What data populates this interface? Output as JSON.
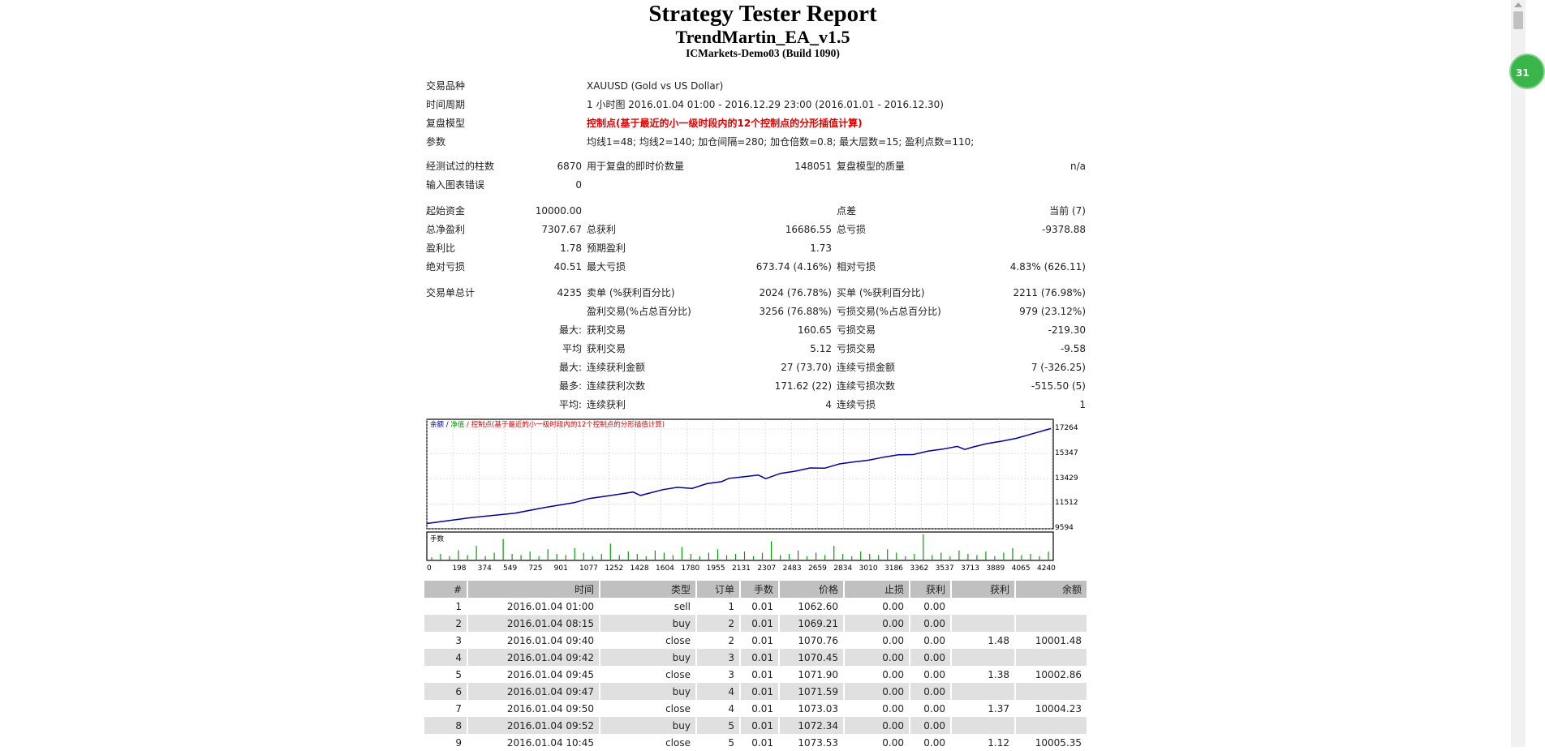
{
  "report": {
    "title": "Strategy Tester Report",
    "ea_name": "TrendMartin_EA_v1.5",
    "server": "ICMarkets-Demo03 (Build 1090)"
  },
  "summary": {
    "symbol_label": "交易品种",
    "symbol_value": "XAUUSD (Gold vs US Dollar)",
    "period_label": "时间周期",
    "period_value": "1 小时图 2016.01.04 01:00 - 2016.12.29 23:00 (2016.01.01 - 2016.12.30)",
    "model_label": "复盘模型",
    "model_value": "控制点(基于最近的小一级时段内的12个控制点的分形插值计算)",
    "params_label": "参数",
    "params_value": "均线1=48; 均线2=140; 加仓间隔=280; 加仓倍数=0.8; 最大层数=15; 盈利点数=110;",
    "bars_label": "经测试过的柱数",
    "bars_value": "6870",
    "ticks_label": "用于复盘的即时价数量",
    "ticks_value": "148051",
    "quality_label": "复盘模型的质量",
    "quality_value": "n/a",
    "errors_label": "输入图表错误",
    "errors_value": "0",
    "deposit_label": "起始资金",
    "deposit_value": "10000.00",
    "spread_label": "点差",
    "spread_value": "当前 (7)",
    "net_profit_label": "总净盈利",
    "net_profit_value": "7307.67",
    "gross_profit_label": "总获利",
    "gross_profit_value": "16686.55",
    "gross_loss_label": "总亏损",
    "gross_loss_value": "-9378.88",
    "profit_factor_label": "盈利比",
    "profit_factor_value": "1.78",
    "expected_payoff_label": "预期盈利",
    "expected_payoff_value": "1.73",
    "abs_drawdown_label": "绝对亏损",
    "abs_drawdown_value": "40.51",
    "max_drawdown_label": "最大亏损",
    "max_drawdown_value": "673.74 (4.16%)",
    "rel_drawdown_label": "相对亏损",
    "rel_drawdown_value": "4.83% (626.11)",
    "total_trades_label": "交易单总计",
    "total_trades_value": "4235",
    "short_label": "卖单 (%获利百分比)",
    "short_value": "2024 (76.78%)",
    "long_label": "买单 (%获利百分比)",
    "long_value": "2211 (76.98%)",
    "profit_trades_label": "盈利交易(%占总百分比)",
    "profit_trades_value": "3256 (76.88%)",
    "loss_trades_label": "亏损交易(%占总百分比)",
    "loss_trades_value": "979 (23.12%)",
    "largest_prefix": "最大:",
    "largest_profit_label": "获利交易",
    "largest_profit_value": "160.65",
    "largest_loss_label": "亏损交易",
    "largest_loss_value": "-219.30",
    "average_prefix": "平均",
    "average_profit_label": "获利交易",
    "average_profit_value": "5.12",
    "average_loss_label": "亏损交易",
    "average_loss_value": "-9.58",
    "max_consec_prefix": "最大:",
    "max_consec_wins_label": "连续获利金额",
    "max_consec_wins_value": "27 (73.70)",
    "max_consec_losses_label": "连续亏损金额",
    "max_consec_losses_value": "7 (-326.25)",
    "maximal_prefix": "最多:",
    "maximal_consec_profit_label": "连续获利次数",
    "maximal_consec_profit_value": "171.62 (22)",
    "maximal_consec_loss_label": "连续亏损次数",
    "maximal_consec_loss_value": "-515.50 (5)",
    "avg_consec_prefix": "平均:",
    "avg_consec_wins_label": "连续获利",
    "avg_consec_wins_value": "4",
    "avg_consec_losses_label": "连续亏损",
    "avg_consec_losses_value": "1"
  },
  "chart_data": {
    "type": "line",
    "legend": {
      "balance": "余额",
      "sep1": " / ",
      "equity": "净值",
      "sep2": " / ",
      "model": "控制点(基于最近的小一级时段内的12个控制点的分形插值计算)"
    },
    "ylim": [
      9594,
      17264
    ],
    "y_ticks": [
      "17264",
      "15347",
      "13429",
      "11512",
      "9594"
    ],
    "x_ticks": [
      "0",
      "198",
      "374",
      "549",
      "725",
      "901",
      "1077",
      "1252",
      "1428",
      "1604",
      "1780",
      "1955",
      "2131",
      "2307",
      "2483",
      "2659",
      "2834",
      "3010",
      "3186",
      "3362",
      "3537",
      "3713",
      "3889",
      "4065",
      "4240"
    ],
    "volume_label": "手数",
    "colors": {
      "balance": "#0000a0",
      "equity": "#00a000",
      "model": "#e00000",
      "volume": "#00a000"
    },
    "series": [
      {
        "name": "余额",
        "x": [
          0,
          300,
          600,
          800,
          1000,
          1100,
          1250,
          1400,
          1450,
          1600,
          1700,
          1800,
          1900,
          2000,
          2050,
          2150,
          2250,
          2300,
          2400,
          2500,
          2600,
          2700,
          2800,
          2900,
          3000,
          3100,
          3200,
          3300,
          3400,
          3500,
          3600,
          3650,
          3700,
          3800,
          3900,
          4000,
          4100,
          4235
        ],
        "values": [
          10001,
          10450,
          10800,
          11230,
          11600,
          11920,
          12160,
          12420,
          12160,
          12600,
          12780,
          12700,
          13060,
          13220,
          13470,
          13590,
          13720,
          13450,
          13850,
          14020,
          14270,
          14250,
          14580,
          14740,
          14870,
          15100,
          15290,
          15300,
          15560,
          15720,
          15930,
          15690,
          15860,
          16140,
          16330,
          16550,
          16870,
          17300
        ]
      }
    ],
    "volume_values": [
      0.02,
      0.05,
      0.03,
      0.08,
      0.04,
      0.12,
      0.03,
      0.06,
      0.18,
      0.05,
      0.04,
      0.07,
      0.03,
      0.09,
      0.05,
      0.04,
      0.1,
      0.06,
      0.03,
      0.05,
      0.14,
      0.04,
      0.07,
      0.05,
      0.03,
      0.08,
      0.06,
      0.04,
      0.11,
      0.05,
      0.03,
      0.06,
      0.09,
      0.04,
      0.05,
      0.07,
      0.03,
      0.06,
      0.16,
      0.04,
      0.05,
      0.08,
      0.03,
      0.06,
      0.04,
      0.12,
      0.05,
      0.03,
      0.07,
      0.05,
      0.04,
      0.09,
      0.06,
      0.03,
      0.05,
      0.22,
      0.04,
      0.06,
      0.03,
      0.08,
      0.05,
      0.04,
      0.07,
      0.03,
      0.06,
      0.1,
      0.04,
      0.05,
      0.03,
      0.07
    ]
  },
  "deals_table": {
    "headers": [
      "#",
      "时间",
      "类型",
      "订单",
      "手数",
      "价格",
      "止损",
      "获利",
      "获利",
      "余额"
    ],
    "rows": [
      [
        "1",
        "2016.01.04 01:00",
        "sell",
        "1",
        "0.01",
        "1062.60",
        "0.00",
        "0.00",
        "",
        ""
      ],
      [
        "2",
        "2016.01.04 08:15",
        "buy",
        "2",
        "0.01",
        "1069.21",
        "0.00",
        "0.00",
        "",
        ""
      ],
      [
        "3",
        "2016.01.04 09:40",
        "close",
        "2",
        "0.01",
        "1070.76",
        "0.00",
        "0.00",
        "1.48",
        "10001.48"
      ],
      [
        "4",
        "2016.01.04 09:42",
        "buy",
        "3",
        "0.01",
        "1070.45",
        "0.00",
        "0.00",
        "",
        ""
      ],
      [
        "5",
        "2016.01.04 09:45",
        "close",
        "3",
        "0.01",
        "1071.90",
        "0.00",
        "0.00",
        "1.38",
        "10002.86"
      ],
      [
        "6",
        "2016.01.04 09:47",
        "buy",
        "4",
        "0.01",
        "1071.59",
        "0.00",
        "0.00",
        "",
        ""
      ],
      [
        "7",
        "2016.01.04 09:50",
        "close",
        "4",
        "0.01",
        "1073.03",
        "0.00",
        "0.00",
        "1.37",
        "10004.23"
      ],
      [
        "8",
        "2016.01.04 09:52",
        "buy",
        "5",
        "0.01",
        "1072.34",
        "0.00",
        "0.00",
        "",
        ""
      ],
      [
        "9",
        "2016.01.04 10:45",
        "close",
        "5",
        "0.01",
        "1073.53",
        "0.00",
        "0.00",
        "1.12",
        "10005.35"
      ]
    ]
  },
  "widget": {
    "badge_text": "31"
  }
}
